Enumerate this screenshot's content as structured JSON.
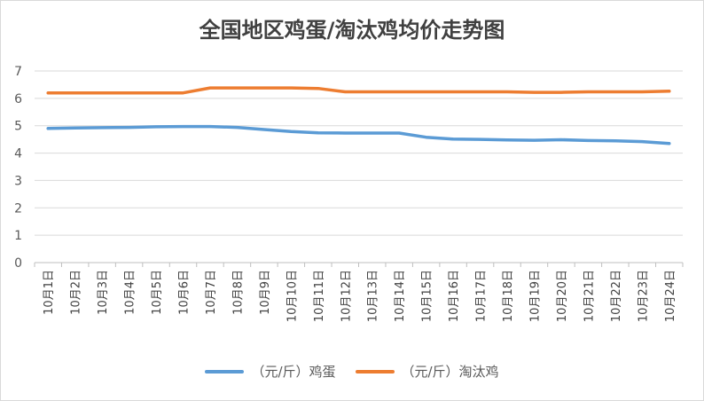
{
  "chart_data": {
    "type": "line",
    "title": "全国地区鸡蛋/淘汰鸡均价走势图",
    "x": [
      "10月1日",
      "10月2日",
      "10月3日",
      "10月4日",
      "10月5日",
      "10月6日",
      "10月7日",
      "10月8日",
      "10月9日",
      "10月10日",
      "10月11日",
      "10月12日",
      "10月13日",
      "10月14日",
      "10月15日",
      "10月16日",
      "10月17日",
      "10月18日",
      "10月19日",
      "10月20日",
      "10月21日",
      "10月22日",
      "10月23日",
      "10月24日"
    ],
    "series": [
      {
        "name": "（元/斤）鸡蛋",
        "color": "#5b9bd5",
        "values": [
          4.9,
          4.92,
          4.93,
          4.94,
          4.96,
          4.97,
          4.97,
          4.94,
          4.86,
          4.79,
          4.74,
          4.73,
          4.73,
          4.73,
          4.58,
          4.51,
          4.5,
          4.48,
          4.47,
          4.49,
          4.46,
          4.45,
          4.42,
          4.35
        ]
      },
      {
        "name": "（元/斤）淘汰鸡",
        "color": "#ed7d31",
        "values": [
          6.2,
          6.2,
          6.2,
          6.2,
          6.2,
          6.2,
          6.38,
          6.38,
          6.38,
          6.38,
          6.36,
          6.24,
          6.24,
          6.24,
          6.24,
          6.24,
          6.24,
          6.24,
          6.22,
          6.22,
          6.24,
          6.24,
          6.24,
          6.26
        ]
      }
    ],
    "ylim": [
      0,
      7
    ],
    "yticks": [
      0,
      1,
      2,
      3,
      4,
      5,
      6,
      7
    ],
    "grid": true,
    "legend": "bottom"
  }
}
